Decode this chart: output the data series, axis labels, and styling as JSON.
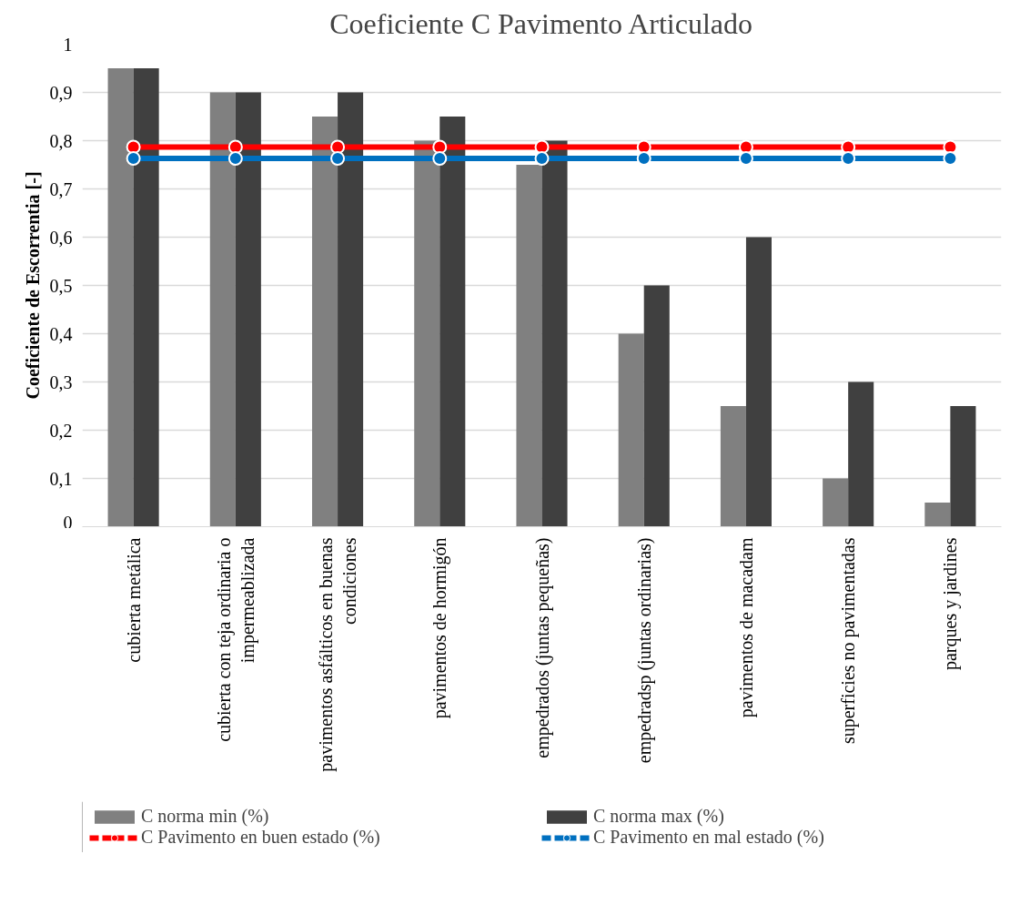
{
  "chart_data": {
    "type": "bar",
    "title": "Coeficiente C Pavimento Articulado",
    "ylabel": "Coeficiente de Escorrentia [-]",
    "categories": [
      "cubierta metálica",
      "cubierta con teja ordinaria o impermeablizada",
      "pavimentos asfálticos en buenas condiciones",
      "pavimentos de hormigón",
      "empedrados (juntas pequeñas)",
      "empedradsp (juntas ordinarias)",
      "pavimentos de macadam",
      "superficies no pavimentadas",
      "parques y jardines"
    ],
    "series": [
      {
        "name": "C norma min (%)",
        "color": "#808080",
        "values": [
          0.95,
          0.9,
          0.85,
          0.8,
          0.75,
          0.4,
          0.25,
          0.1,
          0.05
        ]
      },
      {
        "name": "C norma max (%)",
        "color": "#404040",
        "values": [
          0.95,
          0.9,
          0.9,
          0.85,
          0.8,
          0.5,
          0.6,
          0.3,
          0.25
        ]
      },
      {
        "name": "C Pavimento en buen estado (%)",
        "type": "line",
        "color": "#ff0000",
        "values": [
          0.787,
          0.787,
          0.787,
          0.787,
          0.787,
          0.787,
          0.787,
          0.787,
          0.787
        ]
      },
      {
        "name": "C Pavimento en mal estado (%)",
        "type": "line",
        "color": "#0070c0",
        "values": [
          0.763,
          0.763,
          0.763,
          0.763,
          0.763,
          0.763,
          0.763,
          0.763,
          0.763
        ]
      }
    ],
    "ylim": [
      0,
      1
    ],
    "yticks": [
      {
        "value": 0,
        "label": "0"
      },
      {
        "value": 0.1,
        "label": "0,1"
      },
      {
        "value": 0.2,
        "label": "0,2"
      },
      {
        "value": 0.3,
        "label": "0,3"
      },
      {
        "value": 0.4,
        "label": "0,4"
      },
      {
        "value": 0.5,
        "label": "0,5"
      },
      {
        "value": 0.6,
        "label": "0,6"
      },
      {
        "value": 0.7,
        "label": "0,7"
      },
      {
        "value": 0.8,
        "label": "0,8"
      },
      {
        "value": 0.9,
        "label": "0,9"
      },
      {
        "value": 1,
        "label": "1"
      }
    ],
    "grid": "y",
    "legend": "bottom",
    "marker": "circle"
  }
}
